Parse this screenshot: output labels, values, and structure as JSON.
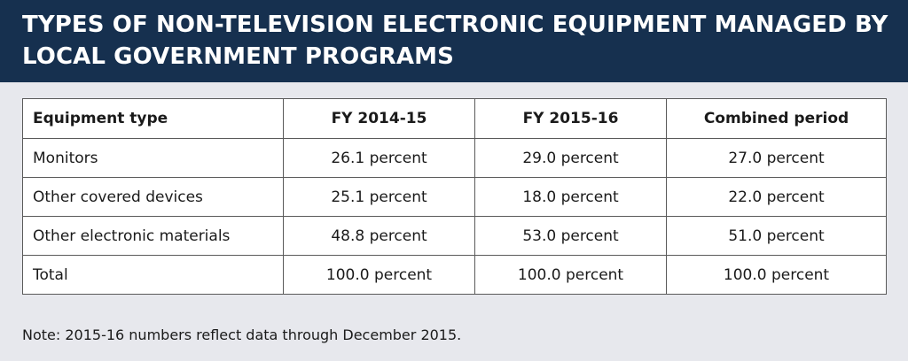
{
  "title": "TYPES OF NON-TELEVISION ELECTRONIC EQUIPMENT MANAGED BY LOCAL GOVERNMENT PROGRAMS",
  "table": {
    "headers": [
      "Equipment type",
      "FY 2014-15",
      "FY 2015-16",
      "Combined period"
    ],
    "rows": [
      [
        "Monitors",
        "26.1 percent",
        "29.0 percent",
        "27.0 percent"
      ],
      [
        "Other covered devices",
        "25.1 percent",
        "18.0 percent",
        "22.0 percent"
      ],
      [
        "Other electronic materials",
        "48.8 percent",
        "53.0 percent",
        "51.0 percent"
      ],
      [
        "Total",
        "100.0 percent",
        "100.0 percent",
        "100.0 percent"
      ]
    ]
  },
  "note": "Note: 2015-16 numbers reflect data through December 2015.",
  "colors": {
    "header_background": "#16304f",
    "page_background": "#e7e8ed",
    "table_background": "#ffffff"
  }
}
